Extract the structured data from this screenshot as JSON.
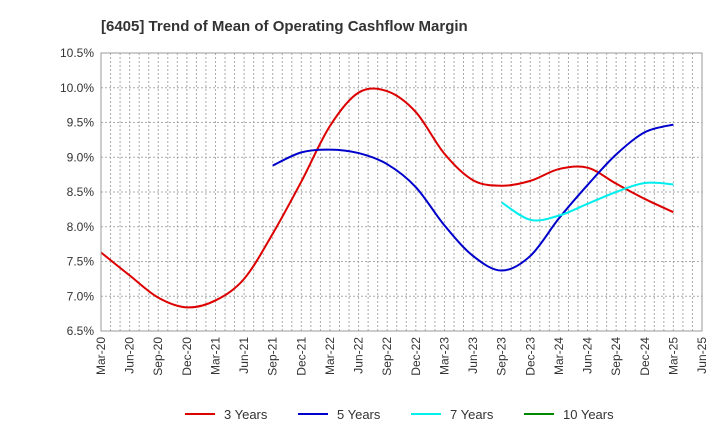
{
  "chart_data": {
    "type": "line",
    "title": "[6405]  Trend of Mean of Operating Cashflow Margin",
    "xlabel": "",
    "ylabel": "",
    "x_ticks": [
      "Mar-20",
      "Jun-20",
      "Sep-20",
      "Dec-20",
      "Mar-21",
      "Jun-21",
      "Sep-21",
      "Dec-21",
      "Mar-22",
      "Jun-22",
      "Sep-22",
      "Dec-22",
      "Mar-23",
      "Jun-23",
      "Sep-23",
      "Dec-23",
      "Mar-24",
      "Jun-24",
      "Sep-24",
      "Dec-24",
      "Mar-25",
      "Jun-25"
    ],
    "y_ticks": [
      "6.5%",
      "7.0%",
      "7.5%",
      "8.0%",
      "8.5%",
      "9.0%",
      "9.5%",
      "10.0%",
      "10.5%"
    ],
    "ylim": [
      6.5,
      10.5
    ],
    "grid": true,
    "legend_position": "bottom",
    "series": [
      {
        "name": "3 Years",
        "color": "#dd0000",
        "values": [
          7.63,
          7.3,
          6.98,
          6.84,
          6.94,
          7.25,
          7.9,
          8.65,
          9.45,
          9.93,
          9.95,
          9.65,
          9.05,
          8.67,
          8.59,
          8.66,
          8.83,
          8.85,
          8.62,
          8.4,
          8.21,
          null
        ]
      },
      {
        "name": "5 Years",
        "color": "#0000cc",
        "values": [
          null,
          null,
          null,
          null,
          null,
          null,
          8.88,
          9.07,
          9.11,
          9.06,
          8.9,
          8.57,
          8.02,
          7.58,
          7.37,
          7.58,
          8.12,
          8.6,
          9.04,
          9.36,
          9.47,
          null
        ]
      },
      {
        "name": "7 Years",
        "color": "#00eeee",
        "values": [
          null,
          null,
          null,
          null,
          null,
          null,
          null,
          null,
          null,
          null,
          null,
          null,
          null,
          null,
          8.35,
          8.1,
          8.16,
          8.33,
          8.5,
          8.63,
          8.61,
          null
        ]
      },
      {
        "name": "10 Years",
        "color": "#008800",
        "values": [
          null,
          null,
          null,
          null,
          null,
          null,
          null,
          null,
          null,
          null,
          null,
          null,
          null,
          null,
          null,
          null,
          null,
          null,
          null,
          null,
          null,
          null
        ]
      }
    ]
  }
}
